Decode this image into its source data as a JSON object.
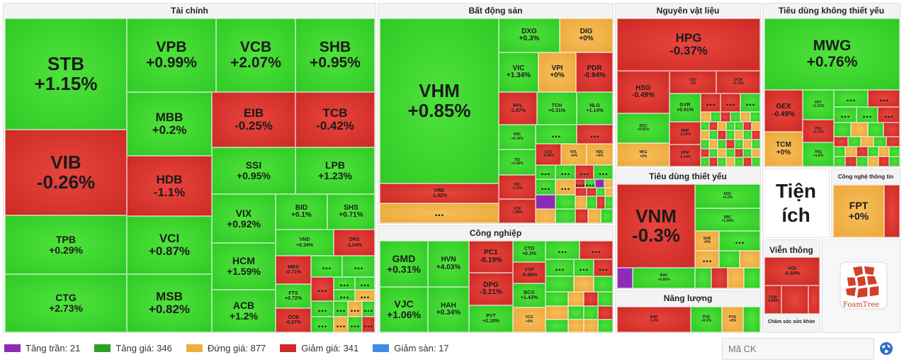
{
  "sectors": {
    "finance": "Tài chính",
    "realestate": "Bất động sản",
    "materials": "Nguyên vật liệu",
    "discretionary": "Tiêu dùng không thiết yếu",
    "industrial": "Công nghiệp",
    "staples": "Tiêu dùng thiết yếu",
    "energy": "Năng lượng",
    "utilities": "Tiện ích",
    "it": "Công nghệ thông tin",
    "telecom": "Viễn thông",
    "health": "Chăm sóc sức khỏe"
  },
  "tiles": {
    "STB": {
      "t": "STB",
      "v": "+1.15%"
    },
    "VIB": {
      "t": "VIB",
      "v": "-0.26%"
    },
    "TPB": {
      "t": "TPB",
      "v": "+0.29%"
    },
    "CTG": {
      "t": "CTG",
      "v": "+2.73%"
    },
    "VPB": {
      "t": "VPB",
      "v": "+0.99%"
    },
    "VCB": {
      "t": "VCB",
      "v": "+2.07%"
    },
    "SHB": {
      "t": "SHB",
      "v": "+0.95%"
    },
    "MBB": {
      "t": "MBB",
      "v": "+0.2%"
    },
    "EIB": {
      "t": "EIB",
      "v": "-0.25%"
    },
    "TCB": {
      "t": "TCB",
      "v": "-0.42%"
    },
    "HDB": {
      "t": "HDB",
      "v": "-1.1%"
    },
    "SSI": {
      "t": "SSI",
      "v": "+0.95%"
    },
    "LPB": {
      "t": "LPB",
      "v": "+1.23%"
    },
    "VCI": {
      "t": "VCI",
      "v": "+0.87%"
    },
    "MSB": {
      "t": "MSB",
      "v": "+0.82%"
    },
    "VIX": {
      "t": "VIX",
      "v": "+0.92%"
    },
    "HCM": {
      "t": "HCM",
      "v": "+1.59%"
    },
    "ACB": {
      "t": "ACB",
      "v": "+1.2%"
    },
    "BID": {
      "t": "BID",
      "v": "+0.1%"
    },
    "SHS": {
      "t": "SHS",
      "v": "+0.71%"
    },
    "VND": {
      "t": "VND",
      "v": "+0.34%"
    },
    "ORS": {
      "t": "ORS",
      "v": "-1.04%"
    },
    "MBS": {
      "t": "MBS",
      "v": "-0.71%"
    },
    "FTS": {
      "t": "FTS",
      "v": "+0.72%"
    },
    "OCB": {
      "t": "OCB",
      "v": "-0.87%"
    },
    "VHM": {
      "t": "VHM",
      "v": "+0.85%"
    },
    "VRE": {
      "t": "VRE",
      "v": "-1.92%"
    },
    "DXG": {
      "t": "DXG",
      "v": "+0.3%"
    },
    "DIG": {
      "t": "DIG",
      "v": "+0%"
    },
    "VIC": {
      "t": "VIC",
      "v": "+1.34%"
    },
    "VPI": {
      "t": "VPI",
      "v": "+0%"
    },
    "PDR": {
      "t": "PDR",
      "v": "-0.94%"
    },
    "NVL": {
      "t": "NVL",
      "v": "-1.87%"
    },
    "TCH": {
      "t": "TCH",
      "v": "+0.31%"
    },
    "NLG": {
      "t": "NLG",
      "v": "+1.14%"
    },
    "KBC": {
      "t": "KBC",
      "v": "+0.19%"
    },
    "TIG": {
      "t": "TIG",
      "v": "+3.08%"
    },
    "CEO": {
      "t": "CEO",
      "v": "-0.86%"
    },
    "NTL": {
      "t": "NTL",
      "v": "+0%"
    },
    "HDC2": {
      "t": "HDC",
      "v": "+0%"
    },
    "HDC": {
      "t": "HDC",
      "v": "-1.33%"
    },
    "VCR": {
      "t": "VCR",
      "v": "-1.86%"
    },
    "HPG": {
      "t": "HPG",
      "v": "-0.37%"
    },
    "HSG": {
      "t": "HSG",
      "v": "-0.49%"
    },
    "CSV": {
      "t": "CSV",
      "v": "-2%"
    },
    "DCM": {
      "t": "DCM",
      "v": "-0.13%"
    },
    "GVR": {
      "t": "GVR",
      "v": "+0.61%"
    },
    "DGC": {
      "t": "DGC",
      "v": "+0.81%"
    },
    "BMP": {
      "t": "BMP",
      "v": "-2.04%"
    },
    "NKG": {
      "t": "NKG",
      "v": "+0%"
    },
    "DPM": {
      "t": "DPM",
      "v": "-0.14%"
    },
    "MWG": {
      "t": "MWG",
      "v": "+0.76%"
    },
    "GEX": {
      "t": "GEX",
      "v": "-0.49%"
    },
    "FRT": {
      "t": "FRT",
      "v": "+1.52%"
    },
    "PNJ": {
      "t": "PNJ",
      "v": "-0.73%"
    },
    "TCM": {
      "t": "TCM",
      "v": "+0%"
    },
    "TNG": {
      "t": "TNG",
      "v": "+1.8%"
    },
    "GMD": {
      "t": "GMD",
      "v": "+0.31%"
    },
    "HVN": {
      "t": "HVN",
      "v": "+4.03%"
    },
    "PC1": {
      "t": "PC1",
      "v": "-0.19%"
    },
    "CTD": {
      "t": "CTD",
      "v": "+0.3%"
    },
    "VJC": {
      "t": "VJC",
      "v": "+1.06%"
    },
    "HAH": {
      "t": "HAH",
      "v": "+0.34%"
    },
    "DPG": {
      "t": "DPG",
      "v": "-3.21%"
    },
    "VTP": {
      "t": "VTP",
      "v": "-0.88%"
    },
    "BCG": {
      "t": "BCG",
      "v": "+1.43%"
    },
    "PVT": {
      "t": "PVT",
      "v": "+2.18%"
    },
    "VCG": {
      "t": "VCG",
      "v": "+0%"
    },
    "VNM": {
      "t": "VNM",
      "v": "-0.3%"
    },
    "KDC": {
      "t": "KDC",
      "v": "+0.2%"
    },
    "DBC": {
      "t": "DBC",
      "v": "+1.08%"
    },
    "SAB": {
      "t": "SAB",
      "v": "+0%"
    },
    "BAF": {
      "t": "BAF",
      "v": "+0.66%"
    },
    "BSR": {
      "t": "BSR",
      "v": "-1.4%"
    },
    "PVD": {
      "t": "PVD",
      "v": "+0.2%"
    },
    "PVS": {
      "t": "PVS",
      "v": "+0%"
    },
    "FPT": {
      "t": "FPT",
      "v": "+0%"
    },
    "VGI": {
      "t": "VGI",
      "v": "-0.69%"
    },
    "CSM": {
      "t": "CSM",
      "v": "-0.86%"
    }
  },
  "more": "...",
  "foamtree": "FoamTree",
  "legend": [
    {
      "label": "Tăng trần: 21",
      "color": "#8e2bb5"
    },
    {
      "label": "Tăng giá: 346",
      "color": "#2f9e2a"
    },
    {
      "label": "Đứng giá: 877",
      "color": "#f0ad3c"
    },
    {
      "label": "Giảm giá: 341",
      "color": "#cf2b26"
    },
    {
      "label": "Giảm sàn: 17",
      "color": "#3a8ee6"
    }
  ],
  "search": {
    "placeholder": "Mã CK"
  }
}
